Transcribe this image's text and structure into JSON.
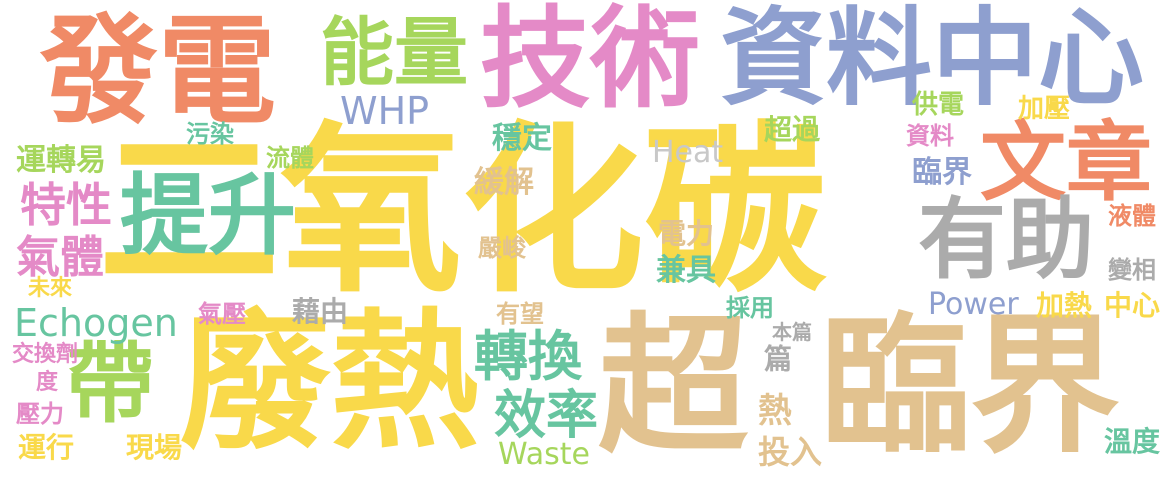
{
  "palette": {
    "yellow": "#f9d94a",
    "tan": "#e2c28f",
    "orange": "#f08a66",
    "blue": "#8e9fcf",
    "pink": "#e48ac7",
    "green": "#a6d65c",
    "teal": "#67c5a0",
    "gray": "#ababab"
  },
  "words": {
    "w_co2": "二氧化碳",
    "w_waste_heat": "廢熱",
    "w_super": "超",
    "w_critical": "臨界",
    "w_power_gen": "發電",
    "w_tech": "技術",
    "w_datacenter": "資料中心",
    "w_energy": "能量",
    "w_whp": "WHP",
    "w_improve": "提升",
    "w_article": "文章",
    "w_helpful": "有助",
    "w_bring": "帶",
    "w_convert": "轉換",
    "w_efficiency": "效率",
    "w_echogen": "Echogen",
    "w_gas": "氣體",
    "w_property": "特性",
    "w_operation_easy": "運轉易",
    "w_pollution": "污染",
    "w_fluid": "流體",
    "w_stable": "穩定",
    "w_relieve": "緩解",
    "w_heat": "Heat",
    "w_exceed": "超過",
    "w_power_supply": "供電",
    "w_pressurize": "加壓",
    "w_data": "資料",
    "w_critical2": "臨界",
    "w_electricity": "電力",
    "w_severe": "嚴峻",
    "w_both": "兼具",
    "w_liquid": "液體",
    "w_phase_change": "變相",
    "w_power": "Power",
    "w_heating": "加熱",
    "w_center": "中心",
    "w_adopt": "採用",
    "w_this_article": "本篇",
    "w_future": "未來",
    "w_gas_pressure": "氣壓",
    "w_through": "藉由",
    "w_promising": "有望",
    "w_exchanger": "交換劑",
    "w_degree": "度",
    "w_pressure": "壓力",
    "w_running": "運行",
    "w_site": "現場",
    "w_waste": "Waste",
    "w_heat_char": "熱",
    "w_invest": "投入",
    "w_article_char": "篇",
    "w_temperature": "溫度"
  }
}
